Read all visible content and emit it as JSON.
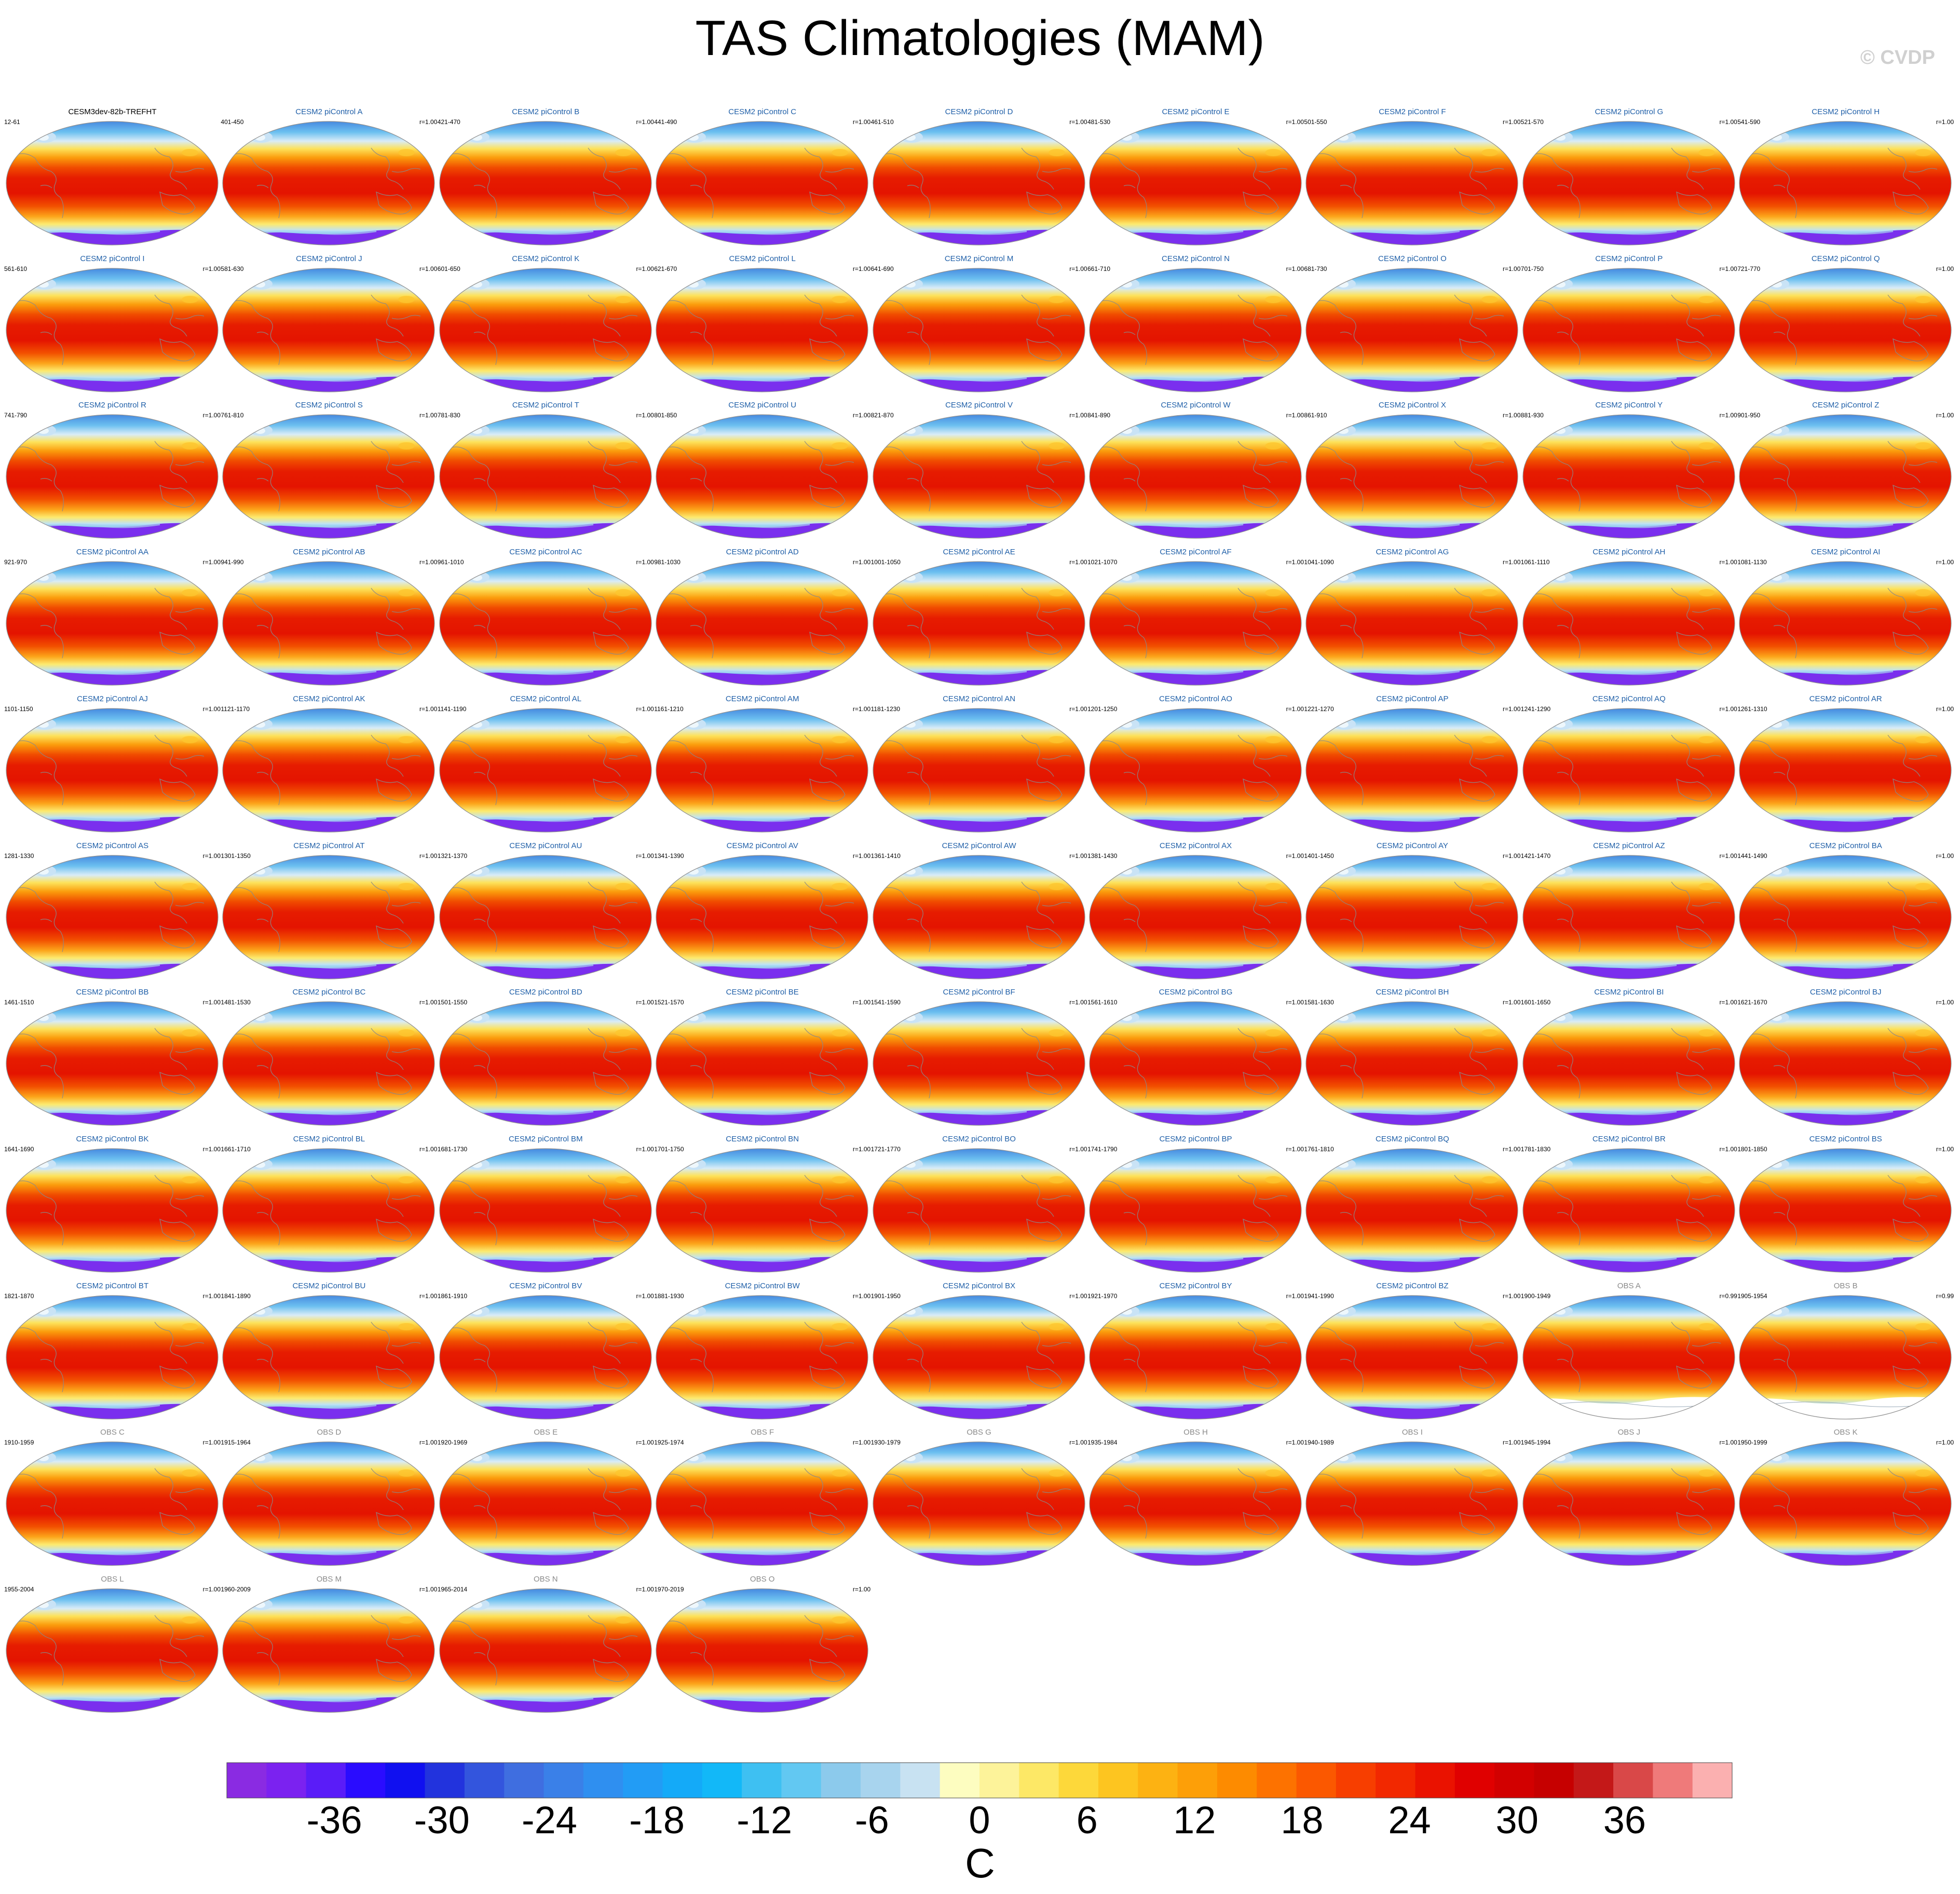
{
  "title": "TAS Climatologies (MAM)",
  "watermark": "© CVDP",
  "colors": {
    "model_title": "#1f5fa8",
    "obs_title": "#8a8a8a",
    "first_title": "#000000"
  },
  "panels": [
    {
      "title": "CESM3dev-82b-TREFHT",
      "years": "12-61",
      "r": "",
      "kind": "first"
    },
    {
      "title": "CESM2 piControl A",
      "years": "401-450",
      "r": "r=1.00",
      "kind": "model"
    },
    {
      "title": "CESM2 piControl B",
      "years": "421-470",
      "r": "r=1.00",
      "kind": "model"
    },
    {
      "title": "CESM2 piControl C",
      "years": "441-490",
      "r": "r=1.00",
      "kind": "model"
    },
    {
      "title": "CESM2 piControl D",
      "years": "461-510",
      "r": "r=1.00",
      "kind": "model"
    },
    {
      "title": "CESM2 piControl E",
      "years": "481-530",
      "r": "r=1.00",
      "kind": "model"
    },
    {
      "title": "CESM2 piControl F",
      "years": "501-550",
      "r": "r=1.00",
      "kind": "model"
    },
    {
      "title": "CESM2 piControl G",
      "years": "521-570",
      "r": "r=1.00",
      "kind": "model"
    },
    {
      "title": "CESM2 piControl H",
      "years": "541-590",
      "r": "r=1.00",
      "kind": "model"
    },
    {
      "title": "CESM2 piControl I",
      "years": "561-610",
      "r": "r=1.00",
      "kind": "model"
    },
    {
      "title": "CESM2 piControl J",
      "years": "581-630",
      "r": "r=1.00",
      "kind": "model"
    },
    {
      "title": "CESM2 piControl K",
      "years": "601-650",
      "r": "r=1.00",
      "kind": "model"
    },
    {
      "title": "CESM2 piControl L",
      "years": "621-670",
      "r": "r=1.00",
      "kind": "model"
    },
    {
      "title": "CESM2 piControl M",
      "years": "641-690",
      "r": "r=1.00",
      "kind": "model"
    },
    {
      "title": "CESM2 piControl N",
      "years": "661-710",
      "r": "r=1.00",
      "kind": "model"
    },
    {
      "title": "CESM2 piControl O",
      "years": "681-730",
      "r": "r=1.00",
      "kind": "model"
    },
    {
      "title": "CESM2 piControl P",
      "years": "701-750",
      "r": "r=1.00",
      "kind": "model"
    },
    {
      "title": "CESM2 piControl Q",
      "years": "721-770",
      "r": "r=1.00",
      "kind": "model"
    },
    {
      "title": "CESM2 piControl R",
      "years": "741-790",
      "r": "r=1.00",
      "kind": "model"
    },
    {
      "title": "CESM2 piControl S",
      "years": "761-810",
      "r": "r=1.00",
      "kind": "model"
    },
    {
      "title": "CESM2 piControl T",
      "years": "781-830",
      "r": "r=1.00",
      "kind": "model"
    },
    {
      "title": "CESM2 piControl U",
      "years": "801-850",
      "r": "r=1.00",
      "kind": "model"
    },
    {
      "title": "CESM2 piControl V",
      "years": "821-870",
      "r": "r=1.00",
      "kind": "model"
    },
    {
      "title": "CESM2 piControl W",
      "years": "841-890",
      "r": "r=1.00",
      "kind": "model"
    },
    {
      "title": "CESM2 piControl X",
      "years": "861-910",
      "r": "r=1.00",
      "kind": "model"
    },
    {
      "title": "CESM2 piControl Y",
      "years": "881-930",
      "r": "r=1.00",
      "kind": "model"
    },
    {
      "title": "CESM2 piControl Z",
      "years": "901-950",
      "r": "r=1.00",
      "kind": "model"
    },
    {
      "title": "CESM2 piControl AA",
      "years": "921-970",
      "r": "r=1.00",
      "kind": "model"
    },
    {
      "title": "CESM2 piControl AB",
      "years": "941-990",
      "r": "r=1.00",
      "kind": "model"
    },
    {
      "title": "CESM2 piControl AC",
      "years": "961-1010",
      "r": "r=1.00",
      "kind": "model"
    },
    {
      "title": "CESM2 piControl AD",
      "years": "981-1030",
      "r": "r=1.00",
      "kind": "model"
    },
    {
      "title": "CESM2 piControl AE",
      "years": "1001-1050",
      "r": "r=1.00",
      "kind": "model"
    },
    {
      "title": "CESM2 piControl AF",
      "years": "1021-1070",
      "r": "r=1.00",
      "kind": "model"
    },
    {
      "title": "CESM2 piControl AG",
      "years": "1041-1090",
      "r": "r=1.00",
      "kind": "model"
    },
    {
      "title": "CESM2 piControl AH",
      "years": "1061-1110",
      "r": "r=1.00",
      "kind": "model"
    },
    {
      "title": "CESM2 piControl AI",
      "years": "1081-1130",
      "r": "r=1.00",
      "kind": "model"
    },
    {
      "title": "CESM2 piControl AJ",
      "years": "1101-1150",
      "r": "r=1.00",
      "kind": "model"
    },
    {
      "title": "CESM2 piControl AK",
      "years": "1121-1170",
      "r": "r=1.00",
      "kind": "model"
    },
    {
      "title": "CESM2 piControl AL",
      "years": "1141-1190",
      "r": "r=1.00",
      "kind": "model"
    },
    {
      "title": "CESM2 piControl AM",
      "years": "1161-1210",
      "r": "r=1.00",
      "kind": "model"
    },
    {
      "title": "CESM2 piControl AN",
      "years": "1181-1230",
      "r": "r=1.00",
      "kind": "model"
    },
    {
      "title": "CESM2 piControl AO",
      "years": "1201-1250",
      "r": "r=1.00",
      "kind": "model"
    },
    {
      "title": "CESM2 piControl AP",
      "years": "1221-1270",
      "r": "r=1.00",
      "kind": "model"
    },
    {
      "title": "CESM2 piControl AQ",
      "years": "1241-1290",
      "r": "r=1.00",
      "kind": "model"
    },
    {
      "title": "CESM2 piControl AR",
      "years": "1261-1310",
      "r": "r=1.00",
      "kind": "model"
    },
    {
      "title": "CESM2 piControl AS",
      "years": "1281-1330",
      "r": "r=1.00",
      "kind": "model"
    },
    {
      "title": "CESM2 piControl AT",
      "years": "1301-1350",
      "r": "r=1.00",
      "kind": "model"
    },
    {
      "title": "CESM2 piControl AU",
      "years": "1321-1370",
      "r": "r=1.00",
      "kind": "model"
    },
    {
      "title": "CESM2 piControl AV",
      "years": "1341-1390",
      "r": "r=1.00",
      "kind": "model"
    },
    {
      "title": "CESM2 piControl AW",
      "years": "1361-1410",
      "r": "r=1.00",
      "kind": "model"
    },
    {
      "title": "CESM2 piControl AX",
      "years": "1381-1430",
      "r": "r=1.00",
      "kind": "model"
    },
    {
      "title": "CESM2 piControl AY",
      "years": "1401-1450",
      "r": "r=1.00",
      "kind": "model"
    },
    {
      "title": "CESM2 piControl AZ",
      "years": "1421-1470",
      "r": "r=1.00",
      "kind": "model"
    },
    {
      "title": "CESM2 piControl BA",
      "years": "1441-1490",
      "r": "r=1.00",
      "kind": "model"
    },
    {
      "title": "CESM2 piControl BB",
      "years": "1461-1510",
      "r": "r=1.00",
      "kind": "model"
    },
    {
      "title": "CESM2 piControl BC",
      "years": "1481-1530",
      "r": "r=1.00",
      "kind": "model"
    },
    {
      "title": "CESM2 piControl BD",
      "years": "1501-1550",
      "r": "r=1.00",
      "kind": "model"
    },
    {
      "title": "CESM2 piControl BE",
      "years": "1521-1570",
      "r": "r=1.00",
      "kind": "model"
    },
    {
      "title": "CESM2 piControl BF",
      "years": "1541-1590",
      "r": "r=1.00",
      "kind": "model"
    },
    {
      "title": "CESM2 piControl BG",
      "years": "1561-1610",
      "r": "r=1.00",
      "kind": "model"
    },
    {
      "title": "CESM2 piControl BH",
      "years": "1581-1630",
      "r": "r=1.00",
      "kind": "model"
    },
    {
      "title": "CESM2 piControl BI",
      "years": "1601-1650",
      "r": "r=1.00",
      "kind": "model"
    },
    {
      "title": "CESM2 piControl BJ",
      "years": "1621-1670",
      "r": "r=1.00",
      "kind": "model"
    },
    {
      "title": "CESM2 piControl BK",
      "years": "1641-1690",
      "r": "r=1.00",
      "kind": "model"
    },
    {
      "title": "CESM2 piControl BL",
      "years": "1661-1710",
      "r": "r=1.00",
      "kind": "model"
    },
    {
      "title": "CESM2 piControl BM",
      "years": "1681-1730",
      "r": "r=1.00",
      "kind": "model"
    },
    {
      "title": "CESM2 piControl BN",
      "years": "1701-1750",
      "r": "r=1.00",
      "kind": "model"
    },
    {
      "title": "CESM2 piControl BO",
      "years": "1721-1770",
      "r": "r=1.00",
      "kind": "model"
    },
    {
      "title": "CESM2 piControl BP",
      "years": "1741-1790",
      "r": "r=1.00",
      "kind": "model"
    },
    {
      "title": "CESM2 piControl BQ",
      "years": "1761-1810",
      "r": "r=1.00",
      "kind": "model"
    },
    {
      "title": "CESM2 piControl BR",
      "years": "1781-1830",
      "r": "r=1.00",
      "kind": "model"
    },
    {
      "title": "CESM2 piControl BS",
      "years": "1801-1850",
      "r": "r=1.00",
      "kind": "model"
    },
    {
      "title": "CESM2 piControl BT",
      "years": "1821-1870",
      "r": "r=1.00",
      "kind": "model"
    },
    {
      "title": "CESM2 piControl BU",
      "years": "1841-1890",
      "r": "r=1.00",
      "kind": "model"
    },
    {
      "title": "CESM2 piControl BV",
      "years": "1861-1910",
      "r": "r=1.00",
      "kind": "model"
    },
    {
      "title": "CESM2 piControl BW",
      "years": "1881-1930",
      "r": "r=1.00",
      "kind": "model"
    },
    {
      "title": "CESM2 piControl BX",
      "years": "1901-1950",
      "r": "r=1.00",
      "kind": "model"
    },
    {
      "title": "CESM2 piControl BY",
      "years": "1921-1970",
      "r": "r=1.00",
      "kind": "model"
    },
    {
      "title": "CESM2 piControl BZ",
      "years": "1941-1990",
      "r": "r=1.00",
      "kind": "model"
    },
    {
      "title": "OBS A",
      "years": "1900-1949",
      "r": "r=0.99",
      "kind": "obs",
      "missing_south": true
    },
    {
      "title": "OBS B",
      "years": "1905-1954",
      "r": "r=0.99",
      "kind": "obs",
      "missing_south": true
    },
    {
      "title": "OBS C",
      "years": "1910-1959",
      "r": "r=1.00",
      "kind": "obs"
    },
    {
      "title": "OBS D",
      "years": "1915-1964",
      "r": "r=1.00",
      "kind": "obs"
    },
    {
      "title": "OBS E",
      "years": "1920-1969",
      "r": "r=1.00",
      "kind": "obs"
    },
    {
      "title": "OBS F",
      "years": "1925-1974",
      "r": "r=1.00",
      "kind": "obs"
    },
    {
      "title": "OBS G",
      "years": "1930-1979",
      "r": "r=1.00",
      "kind": "obs"
    },
    {
      "title": "OBS H",
      "years": "1935-1984",
      "r": "r=1.00",
      "kind": "obs"
    },
    {
      "title": "OBS I",
      "years": "1940-1989",
      "r": "r=1.00",
      "kind": "obs"
    },
    {
      "title": "OBS J",
      "years": "1945-1994",
      "r": "r=1.00",
      "kind": "obs"
    },
    {
      "title": "OBS K",
      "years": "1950-1999",
      "r": "r=1.00",
      "kind": "obs"
    },
    {
      "title": "OBS L",
      "years": "1955-2004",
      "r": "r=1.00",
      "kind": "obs"
    },
    {
      "title": "OBS M",
      "years": "1960-2009",
      "r": "r=1.00",
      "kind": "obs"
    },
    {
      "title": "OBS N",
      "years": "1965-2014",
      "r": "r=1.00",
      "kind": "obs"
    },
    {
      "title": "OBS O",
      "years": "1970-2019",
      "r": "r=1.00",
      "kind": "obs"
    }
  ],
  "colorbar": {
    "unit": "C",
    "min": -42,
    "max": 42,
    "step": 3,
    "colors": [
      "#8a2be2",
      "#7b22f0",
      "#5a1cf8",
      "#2a0cff",
      "#1010f0",
      "#2233dd",
      "#3355dd",
      "#3f6ee0",
      "#3a80e8",
      "#2f8ff0",
      "#229cf5",
      "#14aaf8",
      "#12b8f8",
      "#3ec0f2",
      "#62c8f2",
      "#8ccaec",
      "#a8d4ee",
      "#c8e2f2",
      "#fdfdc0",
      "#fdf39a",
      "#fde866",
      "#fdd83a",
      "#fdc520",
      "#fdb212",
      "#fd9f08",
      "#fd8b00",
      "#fd7200",
      "#fb5800",
      "#f73e00",
      "#f22800",
      "#ea1200",
      "#e00000",
      "#d20000",
      "#c60000",
      "#c41818",
      "#d94848",
      "#ef7a7a",
      "#fbb0b0"
    ],
    "ticks": [
      "-36",
      "-30",
      "-24",
      "-18",
      "-12",
      "-6",
      "0",
      "6",
      "12",
      "18",
      "24",
      "30",
      "36"
    ],
    "tick_values": [
      -36,
      -30,
      -24,
      -18,
      -12,
      -6,
      0,
      6,
      12,
      18,
      24,
      30,
      36
    ]
  }
}
